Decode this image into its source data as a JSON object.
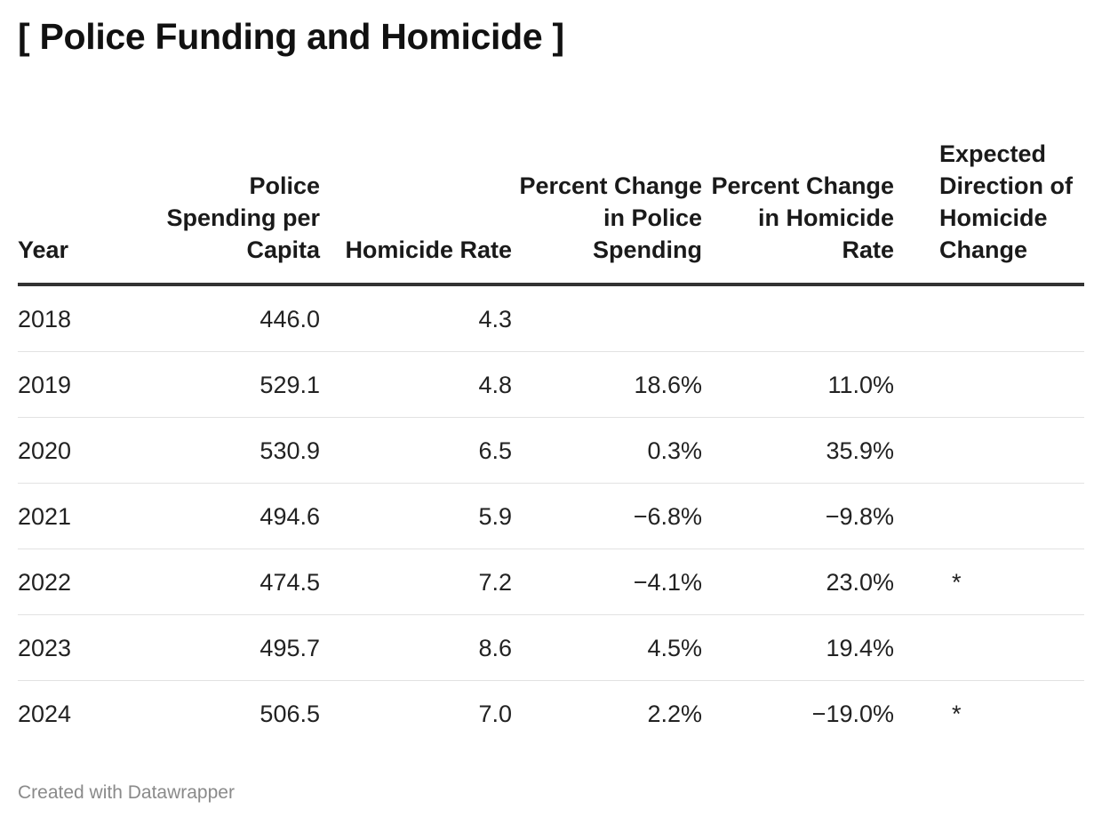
{
  "title": "[ Police Funding and Homicide ]",
  "footer": "Created with Datawrapper",
  "chart_data": {
    "type": "table",
    "title": "[ Police Funding and Homicide ]",
    "columns": [
      "Year",
      "Police Spending per Capita",
      "Homicide Rate",
      "Percent Change in Police Spending",
      "Percent Change in Homicide Rate",
      "Expected Direction of Homicide Change"
    ],
    "rows": [
      [
        "2018",
        "446.0",
        "4.3",
        "",
        "",
        ""
      ],
      [
        "2019",
        "529.1",
        "4.8",
        "18.6%",
        "11.0%",
        ""
      ],
      [
        "2020",
        "530.9",
        "6.5",
        "0.3%",
        "35.9%",
        ""
      ],
      [
        "2021",
        "494.6",
        "5.9",
        "−6.8%",
        "−9.8%",
        ""
      ],
      [
        "2022",
        "474.5",
        "7.2",
        "−4.1%",
        "23.0%",
        "*"
      ],
      [
        "2023",
        "495.7",
        "8.6",
        "4.5%",
        "19.4%",
        ""
      ],
      [
        "2024",
        "506.5",
        "7.0",
        "2.2%",
        "−19.0%",
        "*"
      ]
    ]
  }
}
